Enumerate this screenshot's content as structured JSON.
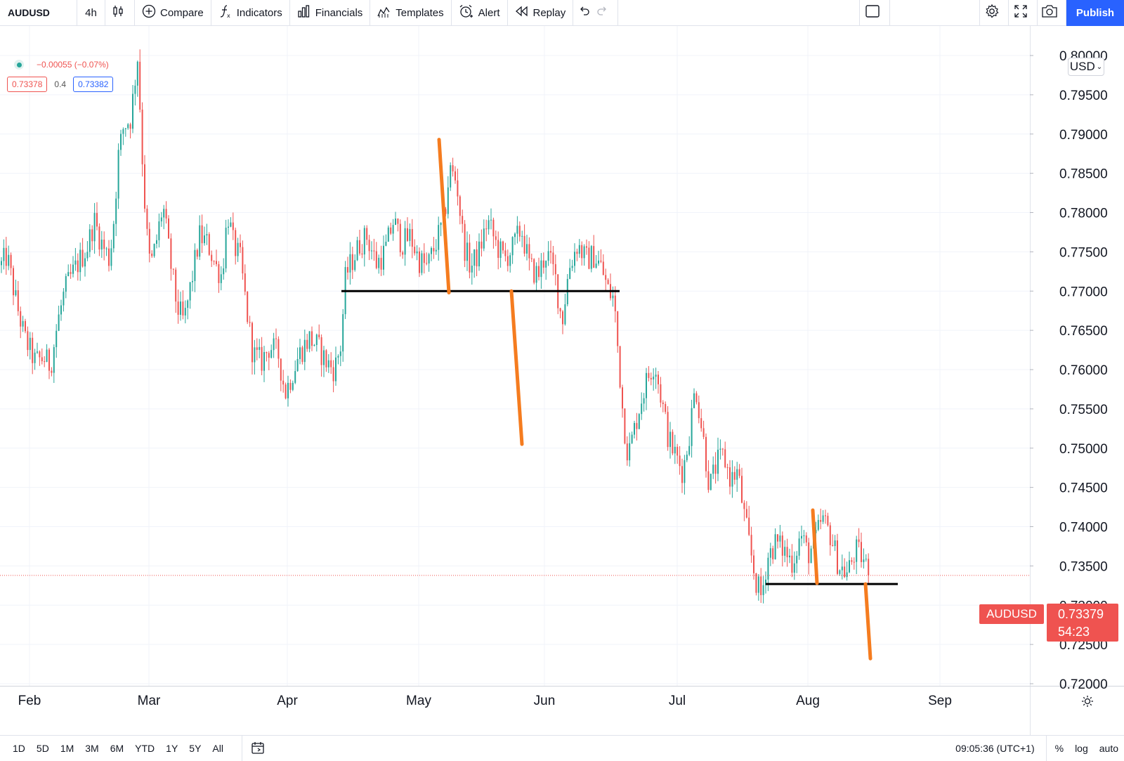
{
  "toolbar": {
    "symbol": "AUDUSD",
    "interval": "4h",
    "compare_label": "Compare",
    "indicators_label": "Indicators",
    "financials_label": "Financials",
    "templates_label": "Templates",
    "alert_label": "Alert",
    "replay_label": "Replay",
    "publish_label": "Publish",
    "icons": [
      "candles-icon",
      "plus-circle-icon",
      "function-icon",
      "bar-chart-icon",
      "templates-icon",
      "alarm-clock-icon",
      "rewind-icon",
      "undo-icon",
      "redo-icon",
      "layout-square-icon",
      "gear-icon",
      "fullscreen-icon",
      "camera-icon"
    ]
  },
  "legend": {
    "change": "−0.00055 (−0.07%)",
    "bid": "0.73378",
    "spread": "0.4",
    "ask": "0.73382"
  },
  "price_scale": {
    "currency": "USD",
    "current_price": "0.73379",
    "countdown": "54:23",
    "symbol_label": "AUDUSD"
  },
  "colors": {
    "up": "#26a69a",
    "down": "#ef5350",
    "annotation": "#f57c1f",
    "support_line": "#000000",
    "publish": "#2962ff"
  },
  "chart_data": {
    "type": "candlestick",
    "symbol": "AUDUSD",
    "interval": "4h",
    "x_labels": [
      "Feb",
      "Mar",
      "Apr",
      "May",
      "Jun",
      "Jul",
      "Aug",
      "Sep"
    ],
    "y_ticks": [
      "0.80000",
      "0.79500",
      "0.79000",
      "0.78500",
      "0.78000",
      "0.77500",
      "0.77000",
      "0.76500",
      "0.76000",
      "0.75500",
      "0.75000",
      "0.74500",
      "0.74000",
      "0.73500",
      "0.73000",
      "0.72500",
      "0.72000"
    ],
    "ylim": [
      0.7195,
      0.8023
    ],
    "xlim": [
      0,
      1466
    ],
    "y_scale": "linear",
    "grid": true,
    "last_price": 0.73379,
    "price_path": [
      [
        0,
        0.773
      ],
      [
        10,
        0.7745
      ],
      [
        22,
        0.769
      ],
      [
        35,
        0.764
      ],
      [
        50,
        0.761
      ],
      [
        62,
        0.7615
      ],
      [
        72,
        0.7605
      ],
      [
        82,
        0.766
      ],
      [
        92,
        0.77
      ],
      [
        102,
        0.772
      ],
      [
        114,
        0.774
      ],
      [
        124,
        0.7755
      ],
      [
        134,
        0.779
      ],
      [
        145,
        0.776
      ],
      [
        156,
        0.774
      ],
      [
        163,
        0.78
      ],
      [
        168,
        0.787
      ],
      [
        176,
        0.791
      ],
      [
        186,
        0.792
      ],
      [
        196,
        0.8
      ],
      [
        202,
        0.788
      ],
      [
        208,
        0.778
      ],
      [
        214,
        0.773
      ],
      [
        222,
        0.776
      ],
      [
        232,
        0.781
      ],
      [
        242,
        0.774
      ],
      [
        252,
        0.768
      ],
      [
        262,
        0.766
      ],
      [
        272,
        0.771
      ],
      [
        284,
        0.777
      ],
      [
        296,
        0.776
      ],
      [
        308,
        0.773
      ],
      [
        316,
        0.772
      ],
      [
        324,
        0.78
      ],
      [
        332,
        0.776
      ],
      [
        342,
        0.774
      ],
      [
        352,
        0.767
      ],
      [
        360,
        0.762
      ],
      [
        372,
        0.761
      ],
      [
        384,
        0.763
      ],
      [
        396,
        0.762
      ],
      [
        406,
        0.757
      ],
      [
        414,
        0.759
      ],
      [
        426,
        0.762
      ],
      [
        440,
        0.764
      ],
      [
        452,
        0.763
      ],
      [
        464,
        0.761
      ],
      [
        476,
        0.76
      ],
      [
        485,
        0.763
      ],
      [
        492,
        0.772
      ],
      [
        502,
        0.774
      ],
      [
        512,
        0.776
      ],
      [
        522,
        0.777
      ],
      [
        536,
        0.7735
      ],
      [
        548,
        0.775
      ],
      [
        560,
        0.779
      ],
      [
        572,
        0.776
      ],
      [
        584,
        0.777
      ],
      [
        596,
        0.774
      ],
      [
        608,
        0.773
      ],
      [
        620,
        0.776
      ],
      [
        632,
        0.779
      ],
      [
        640,
        0.7855
      ],
      [
        650,
        0.784
      ],
      [
        660,
        0.776
      ],
      [
        670,
        0.773
      ],
      [
        682,
        0.775
      ],
      [
        694,
        0.779
      ],
      [
        706,
        0.776
      ],
      [
        718,
        0.774
      ],
      [
        730,
        0.7755
      ],
      [
        742,
        0.778
      ],
      [
        754,
        0.773
      ],
      [
        766,
        0.772
      ],
      [
        778,
        0.775
      ],
      [
        790,
        0.772
      ],
      [
        800,
        0.766
      ],
      [
        810,
        0.773
      ],
      [
        822,
        0.776
      ],
      [
        834,
        0.774
      ],
      [
        846,
        0.7745
      ],
      [
        856,
        0.773
      ],
      [
        866,
        0.77
      ],
      [
        874,
        0.769
      ],
      [
        880,
        0.762
      ],
      [
        887,
        0.754
      ],
      [
        894,
        0.749
      ],
      [
        902,
        0.752
      ],
      [
        912,
        0.756
      ],
      [
        922,
        0.759
      ],
      [
        932,
        0.761
      ],
      [
        942,
        0.756
      ],
      [
        952,
        0.751
      ],
      [
        962,
        0.749
      ],
      [
        972,
        0.747
      ],
      [
        980,
        0.751
      ],
      [
        990,
        0.758
      ],
      [
        1000,
        0.752
      ],
      [
        1010,
        0.745
      ],
      [
        1020,
        0.748
      ],
      [
        1030,
        0.749
      ],
      [
        1040,
        0.746
      ],
      [
        1050,
        0.747
      ],
      [
        1060,
        0.741
      ],
      [
        1068,
        0.737
      ],
      [
        1076,
        0.733
      ],
      [
        1084,
        0.731
      ],
      [
        1092,
        0.736
      ],
      [
        1104,
        0.738
      ],
      [
        1116,
        0.737
      ],
      [
        1128,
        0.7355
      ],
      [
        1140,
        0.739
      ],
      [
        1150,
        0.7365
      ],
      [
        1160,
        0.738
      ],
      [
        1170,
        0.741
      ],
      [
        1182,
        0.739
      ],
      [
        1194,
        0.735
      ],
      [
        1206,
        0.734
      ],
      [
        1218,
        0.737
      ],
      [
        1228,
        0.736
      ],
      [
        1238,
        0.7338
      ]
    ],
    "annotations": {
      "support_lines": [
        {
          "x_start": 486,
          "x_end": 882,
          "price": 0.77
        },
        {
          "x_start": 1090,
          "x_end": 1278,
          "price": 0.7327
        }
      ],
      "measured_moves": [
        {
          "x_start": 625,
          "price_start": 0.7893,
          "x_end": 639,
          "price_end": 0.7698
        },
        {
          "x_start": 728,
          "price_start": 0.77,
          "x_end": 743,
          "price_end": 0.7505
        },
        {
          "x_start": 1157,
          "price_start": 0.7421,
          "x_end": 1163,
          "price_end": 0.7328
        },
        {
          "x_start": 1232,
          "price_start": 0.7327,
          "x_end": 1239,
          "price_end": 0.7232
        }
      ]
    }
  },
  "bottom_bar": {
    "ranges": [
      "1D",
      "5D",
      "1M",
      "3M",
      "6M",
      "YTD",
      "1Y",
      "5Y",
      "All"
    ],
    "clock": "09:05:36 (UTC+1)",
    "percent_label": "%",
    "log_label": "log",
    "auto_label": "auto"
  }
}
